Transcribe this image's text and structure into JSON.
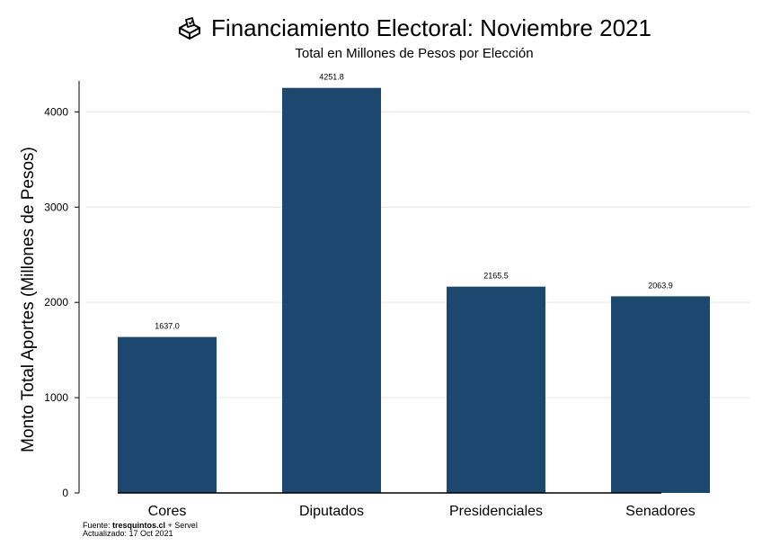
{
  "header": {
    "title": "Financiamiento Electoral: Noviembre 2021",
    "subtitle": "Total en Millones de Pesos por Elección",
    "icon": "ballot-box-icon"
  },
  "footer": {
    "source_prefix": "Fuente: ",
    "source_bold": "tresquintos.cl",
    "source_suffix": " + Servel",
    "updated": "Actualizado: 17 Oct 2021"
  },
  "colors": {
    "bar": "#1c4870",
    "grid": "#e6e6e6",
    "axis": "#000000"
  },
  "chart_data": {
    "type": "bar",
    "title": "Financiamiento Electoral: Noviembre 2021",
    "subtitle": "Total en Millones de Pesos por Elección",
    "xlabel": "",
    "ylabel": "Monto Total Aportes (Millones de Pesos)",
    "categories": [
      "Cores",
      "Diputados",
      "Presidenciales",
      "Senadores"
    ],
    "values": [
      1637.0,
      4251.8,
      2165.5,
      2063.9
    ],
    "value_labels": [
      "1637.0",
      "4251.8",
      "2165.5",
      "2063.9"
    ],
    "yticks": [
      0,
      1000,
      2000,
      3000,
      4000
    ],
    "ylim": [
      0,
      4400
    ],
    "grid": true,
    "legend": "none"
  }
}
